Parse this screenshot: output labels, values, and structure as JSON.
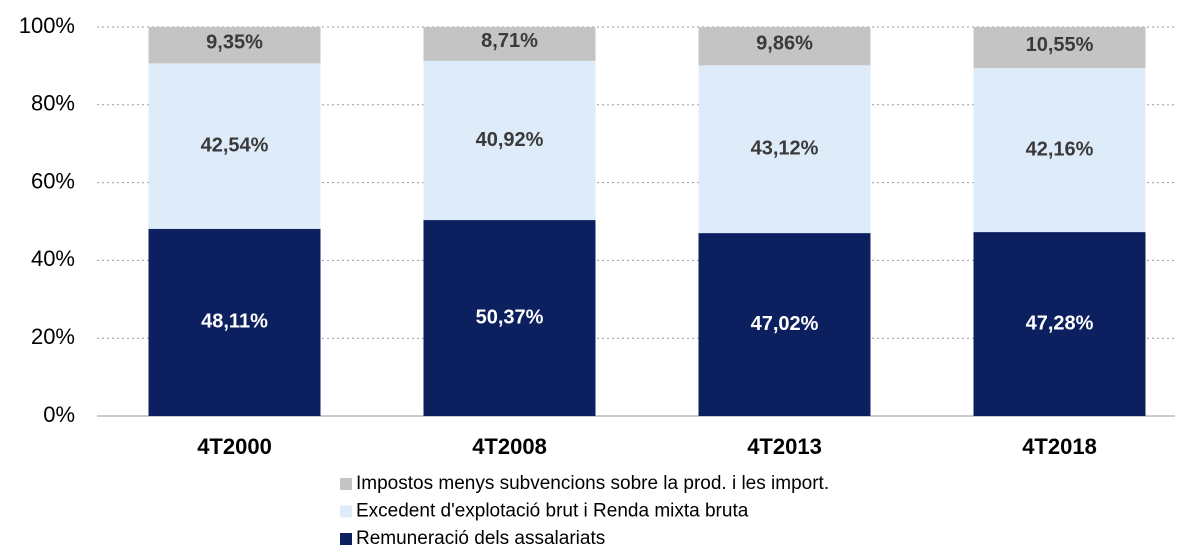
{
  "chart_data": {
    "type": "stacked_bar",
    "categories": [
      "4T2000",
      "4T2008",
      "4T2013",
      "4T2018"
    ],
    "series": [
      {
        "name": "Remuneració dels assalariats",
        "color": "#0c1f5e",
        "values": [
          48.11,
          50.37,
          47.02,
          47.28
        ],
        "value_labels": [
          "48,11%",
          "50,37%",
          "47,02%",
          "47,28%"
        ]
      },
      {
        "name": "Excedent d'explotació brut i Renda mixta bruta",
        "color": "#deebf8",
        "values": [
          42.54,
          40.92,
          43.12,
          42.16
        ],
        "value_labels": [
          "42,54%",
          "40,92%",
          "43,12%",
          "42,16%"
        ]
      },
      {
        "name": "Impostos menys subvencions sobre la prod. i les import.",
        "color": "#c4c4c4",
        "values": [
          9.35,
          8.71,
          9.86,
          10.55
        ],
        "value_labels": [
          "9,35%",
          "8,71%",
          "9,86%",
          "10,55%"
        ]
      }
    ],
    "ylim": [
      0,
      100
    ],
    "yticks": [
      {
        "value": 0,
        "label": "0%"
      },
      {
        "value": 20,
        "label": "20%"
      },
      {
        "value": 40,
        "label": "40%"
      },
      {
        "value": 60,
        "label": "60%"
      },
      {
        "value": 80,
        "label": "80%"
      },
      {
        "value": 100,
        "label": "100%"
      }
    ],
    "grid": true
  }
}
